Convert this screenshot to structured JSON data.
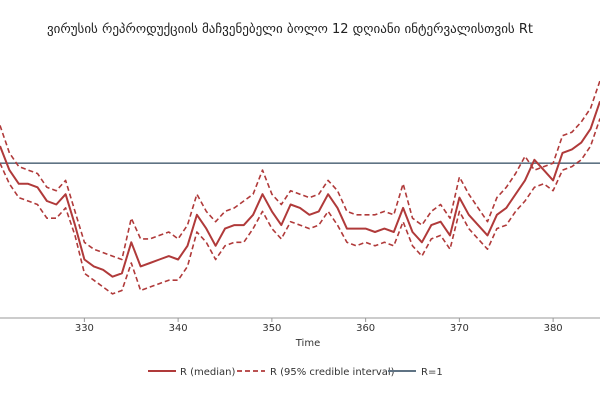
{
  "chart_data": {
    "type": "line",
    "title": "ვირუსის რეპროდუქციის მაჩვენებელი ბოლო 12 დღიანი ინტერვალისთვის Rt",
    "xlabel": "Time",
    "ylabel": "",
    "xlim": [
      321,
      385
    ],
    "ylim": [
      0.55,
      1.3
    ],
    "x_ticks": [
      330,
      340,
      350,
      360,
      370,
      380
    ],
    "x_tick_labels": [
      "330",
      "340",
      "350",
      "360",
      "370",
      "380"
    ],
    "reference_line": {
      "name": "R=1",
      "value": 1.0,
      "color": "#5f7384"
    },
    "legend": {
      "placement": "bottom",
      "entries": [
        "R (median)",
        "R (95% credible interval)",
        "R=1"
      ]
    },
    "colors": {
      "median": "#b03a3a",
      "interval": "#b03a3a"
    },
    "x": [
      321,
      322,
      323,
      324,
      325,
      326,
      327,
      328,
      329,
      330,
      331,
      332,
      333,
      334,
      335,
      336,
      337,
      338,
      339,
      340,
      341,
      342,
      343,
      344,
      345,
      346,
      347,
      348,
      349,
      350,
      351,
      352,
      353,
      354,
      355,
      356,
      357,
      358,
      359,
      360,
      361,
      362,
      363,
      364,
      365,
      366,
      367,
      368,
      369,
      370,
      371,
      372,
      373,
      374,
      375,
      376,
      377,
      378,
      379,
      380,
      381,
      382,
      383,
      384,
      385
    ],
    "series": [
      {
        "name": "R (median)",
        "style": "solid",
        "values": [
          1.05,
          0.98,
          0.94,
          0.94,
          0.93,
          0.89,
          0.88,
          0.91,
          0.82,
          0.72,
          0.7,
          0.69,
          0.67,
          0.68,
          0.77,
          0.7,
          0.71,
          0.72,
          0.73,
          0.72,
          0.76,
          0.85,
          0.81,
          0.76,
          0.81,
          0.82,
          0.82,
          0.85,
          0.91,
          0.86,
          0.82,
          0.88,
          0.87,
          0.85,
          0.86,
          0.91,
          0.87,
          0.81,
          0.81,
          0.81,
          0.8,
          0.81,
          0.8,
          0.87,
          0.8,
          0.77,
          0.82,
          0.83,
          0.79,
          0.9,
          0.85,
          0.82,
          0.79,
          0.85,
          0.87,
          0.91,
          0.95,
          1.01,
          0.98,
          0.95,
          1.03,
          1.04,
          1.06,
          1.1,
          1.18
        ]
      },
      {
        "name": "R (95% credible interval)",
        "style": "dashed",
        "values": [
          1.11,
          1.03,
          0.99,
          0.98,
          0.97,
          0.93,
          0.92,
          0.95,
          0.86,
          0.77,
          0.75,
          0.74,
          0.73,
          0.72,
          0.84,
          0.78,
          0.78,
          0.79,
          0.8,
          0.78,
          0.82,
          0.91,
          0.86,
          0.83,
          0.86,
          0.87,
          0.89,
          0.91,
          0.98,
          0.91,
          0.88,
          0.92,
          0.91,
          0.9,
          0.91,
          0.95,
          0.92,
          0.86,
          0.85,
          0.85,
          0.85,
          0.86,
          0.85,
          0.94,
          0.84,
          0.82,
          0.86,
          0.88,
          0.84,
          0.96,
          0.91,
          0.87,
          0.83,
          0.9,
          0.93,
          0.97,
          1.02,
          0.98,
          0.99,
          1.0,
          1.08,
          1.09,
          1.12,
          1.16,
          1.24
        ]
      },
      {
        "name": "R (95% credible interval)",
        "style": "dashed",
        "values": [
          1.0,
          0.94,
          0.9,
          0.89,
          0.88,
          0.84,
          0.84,
          0.87,
          0.79,
          0.68,
          0.66,
          0.64,
          0.62,
          0.63,
          0.71,
          0.63,
          0.64,
          0.65,
          0.66,
          0.66,
          0.7,
          0.8,
          0.77,
          0.72,
          0.76,
          0.77,
          0.77,
          0.81,
          0.86,
          0.81,
          0.78,
          0.83,
          0.82,
          0.81,
          0.82,
          0.86,
          0.82,
          0.77,
          0.76,
          0.77,
          0.76,
          0.77,
          0.76,
          0.83,
          0.76,
          0.73,
          0.78,
          0.79,
          0.75,
          0.86,
          0.81,
          0.78,
          0.75,
          0.81,
          0.82,
          0.86,
          0.89,
          0.93,
          0.94,
          0.92,
          0.98,
          0.99,
          1.01,
          1.05,
          1.13
        ]
      }
    ]
  }
}
